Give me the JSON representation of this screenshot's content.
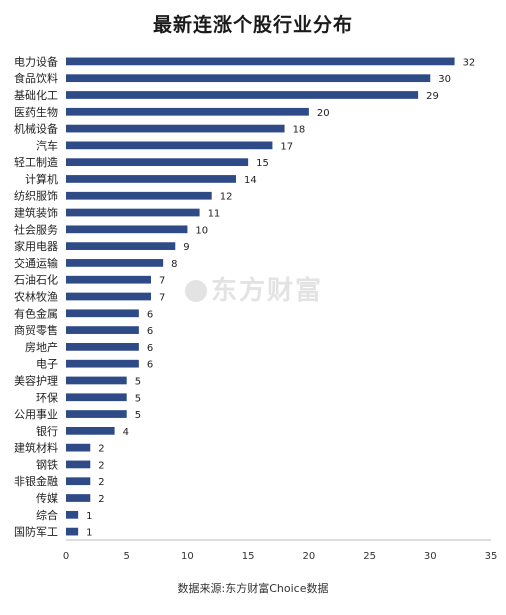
{
  "chart_data": {
    "type": "bar",
    "orientation": "horizontal",
    "title": "最新连涨个股行业分布",
    "categories": [
      "电力设备",
      "食品饮料",
      "基础化工",
      "医药生物",
      "机械设备",
      "汽车",
      "轻工制造",
      "计算机",
      "纺织服饰",
      "建筑装饰",
      "社会服务",
      "家用电器",
      "交通运输",
      "石油石化",
      "农林牧渔",
      "有色金属",
      "商贸零售",
      "房地产",
      "电子",
      "美容护理",
      "环保",
      "公用事业",
      "银行",
      "建筑材料",
      "钢铁",
      "非银金融",
      "传媒",
      "综合",
      "国防军工"
    ],
    "values": [
      32,
      30,
      29,
      20,
      18,
      17,
      15,
      14,
      12,
      11,
      10,
      9,
      8,
      7,
      7,
      6,
      6,
      6,
      6,
      5,
      5,
      5,
      4,
      2,
      2,
      2,
      2,
      1,
      1
    ],
    "xlim": [
      0,
      35
    ],
    "xticks": [
      0,
      5,
      10,
      15,
      20,
      25,
      30,
      35
    ],
    "grid": false,
    "bar_color": "#2e4a87"
  },
  "watermark": "东方财富",
  "source": "数据来源:东方财富Choice数据"
}
